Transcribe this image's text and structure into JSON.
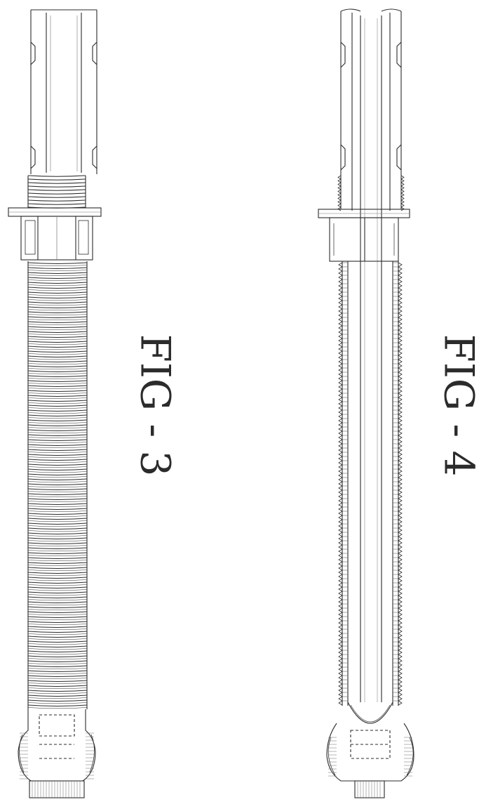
{
  "figures": [
    {
      "id": "fig3",
      "label": "FIG - 3"
    },
    {
      "id": "fig4",
      "label": "FIG - 4"
    }
  ],
  "colors": {
    "line": "#2b2b2b",
    "hatch": "#6a6a6a",
    "paper": "#ffffff"
  }
}
